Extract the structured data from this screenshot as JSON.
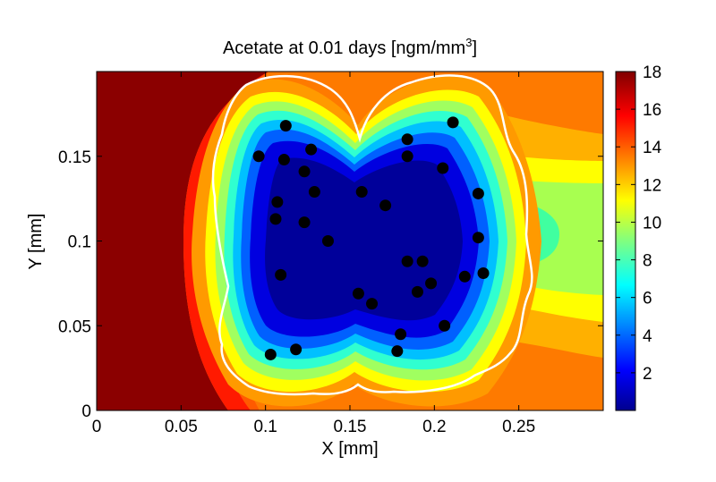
{
  "chart_data": {
    "type": "heatmap",
    "title": "Acetate at 0.01 days [ngm/mm",
    "title_superscript": "3",
    "title_suffix": "]",
    "xlabel": "X [mm]",
    "ylabel": "Y [mm]",
    "xlim": [
      0,
      0.3
    ],
    "ylim": [
      0,
      0.2
    ],
    "xticks": [
      0,
      0.05,
      0.1,
      0.15,
      0.2,
      0.25
    ],
    "xtick_labels": [
      "0",
      "0.05",
      "0.1",
      "0.15",
      "0.2",
      "0.25"
    ],
    "yticks": [
      0,
      0.05,
      0.1,
      0.15
    ],
    "ytick_labels": [
      "0",
      "0.05",
      "0.1",
      "0.15"
    ],
    "colorbar": {
      "range": [
        0,
        18
      ],
      "ticks": [
        2,
        4,
        6,
        8,
        10,
        12,
        14,
        16,
        18
      ],
      "tick_labels": [
        "2",
        "4",
        "6",
        "8",
        "10",
        "12",
        "14",
        "16",
        "18"
      ],
      "colormap": "jet"
    },
    "boundary_color": "#ffffff",
    "marker_color": "#000000",
    "points": [
      {
        "x": 0.112,
        "y": 0.168
      },
      {
        "x": 0.096,
        "y": 0.15
      },
      {
        "x": 0.111,
        "y": 0.148
      },
      {
        "x": 0.127,
        "y": 0.154
      },
      {
        "x": 0.123,
        "y": 0.141
      },
      {
        "x": 0.129,
        "y": 0.129
      },
      {
        "x": 0.107,
        "y": 0.123
      },
      {
        "x": 0.106,
        "y": 0.113
      },
      {
        "x": 0.123,
        "y": 0.111
      },
      {
        "x": 0.137,
        "y": 0.1
      },
      {
        "x": 0.109,
        "y": 0.08
      },
      {
        "x": 0.157,
        "y": 0.129
      },
      {
        "x": 0.171,
        "y": 0.121
      },
      {
        "x": 0.184,
        "y": 0.16
      },
      {
        "x": 0.184,
        "y": 0.15
      },
      {
        "x": 0.205,
        "y": 0.143
      },
      {
        "x": 0.211,
        "y": 0.17
      },
      {
        "x": 0.226,
        "y": 0.128
      },
      {
        "x": 0.226,
        "y": 0.102
      },
      {
        "x": 0.229,
        "y": 0.081
      },
      {
        "x": 0.218,
        "y": 0.079
      },
      {
        "x": 0.184,
        "y": 0.088
      },
      {
        "x": 0.193,
        "y": 0.088
      },
      {
        "x": 0.198,
        "y": 0.075
      },
      {
        "x": 0.19,
        "y": 0.07
      },
      {
        "x": 0.155,
        "y": 0.069
      },
      {
        "x": 0.163,
        "y": 0.063
      },
      {
        "x": 0.206,
        "y": 0.05
      },
      {
        "x": 0.18,
        "y": 0.045
      },
      {
        "x": 0.178,
        "y": 0.035
      },
      {
        "x": 0.103,
        "y": 0.033
      },
      {
        "x": 0.118,
        "y": 0.036
      }
    ]
  }
}
